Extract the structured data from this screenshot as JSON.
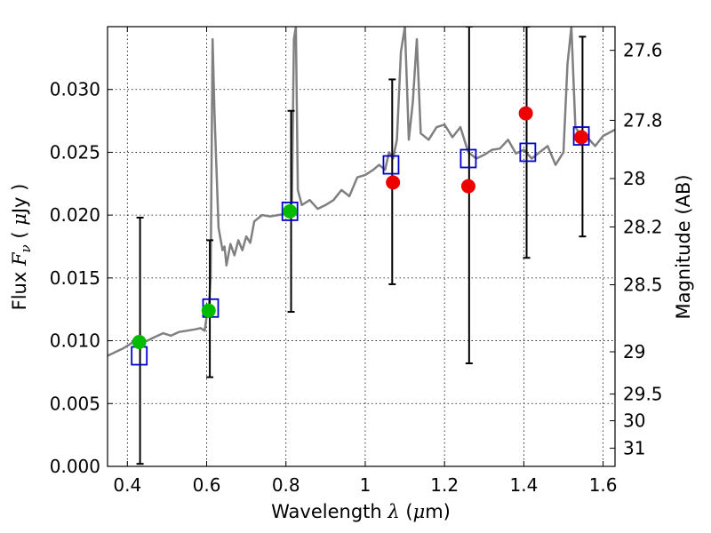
{
  "chart_data": {
    "type": "scatter",
    "title": "",
    "xlabel": "Wavelength  λ (μm)",
    "xlabel_parts": {
      "pre": "Wavelength  ",
      "sym": "λ",
      "open": " (",
      "mu": "μ",
      "post": "m)"
    },
    "ylabel": "Flux  Fν  ( μJy )",
    "ylabel_parts": {
      "pre": "Flux  ",
      "sym": "F",
      "sub": "ν",
      "open": "  ( ",
      "mu": "μ",
      "post": "Jy )"
    },
    "ylabel_right": "Magnitude (AB)",
    "xlim": [
      0.35,
      1.63
    ],
    "ylim": [
      0.0,
      0.035
    ],
    "grid": true,
    "x_ticks": [
      {
        "value": 0.4,
        "label": "0.4"
      },
      {
        "value": 0.6,
        "label": "0.6"
      },
      {
        "value": 0.8,
        "label": "0.8"
      },
      {
        "value": 1.0,
        "label": "1"
      },
      {
        "value": 1.2,
        "label": "1.2"
      },
      {
        "value": 1.4,
        "label": "1.4"
      },
      {
        "value": 1.6,
        "label": "1.6"
      }
    ],
    "y_ticks": [
      {
        "value": 0.0,
        "label": "0.000"
      },
      {
        "value": 0.005,
        "label": "0.005"
      },
      {
        "value": 0.01,
        "label": "0.010"
      },
      {
        "value": 0.015,
        "label": "0.015"
      },
      {
        "value": 0.02,
        "label": "0.020"
      },
      {
        "value": 0.025,
        "label": "0.025"
      },
      {
        "value": 0.03,
        "label": "0.030"
      }
    ],
    "mag_ticks": [
      {
        "value": 27.6,
        "label": "27.6"
      },
      {
        "value": 27.8,
        "label": "27.8"
      },
      {
        "value": 28.0,
        "label": "28"
      },
      {
        "value": 28.2,
        "label": "28.2"
      },
      {
        "value": 28.5,
        "label": "28.5"
      },
      {
        "value": 29.0,
        "label": "29"
      },
      {
        "value": 29.5,
        "label": "29.5"
      },
      {
        "value": 30.0,
        "label": "30"
      },
      {
        "value": 31.0,
        "label": "31"
      }
    ],
    "colors": {
      "spectrum": "#808080",
      "model": "#0000cc",
      "green": "#00bb00",
      "red": "#ee0000",
      "errorbar": "#000000"
    },
    "spectrum": {
      "name": "",
      "x": [
        0.35,
        0.37,
        0.39,
        0.41,
        0.42,
        0.43,
        0.45,
        0.47,
        0.49,
        0.51,
        0.53,
        0.55,
        0.57,
        0.585,
        0.595,
        0.6,
        0.605,
        0.61,
        0.615,
        0.62,
        0.63,
        0.64,
        0.645,
        0.65,
        0.66,
        0.67,
        0.68,
        0.69,
        0.7,
        0.71,
        0.72,
        0.74,
        0.76,
        0.78,
        0.8,
        0.815,
        0.82,
        0.825,
        0.83,
        0.84,
        0.86,
        0.88,
        0.9,
        0.92,
        0.94,
        0.96,
        0.98,
        1.0,
        1.02,
        1.035,
        1.05,
        1.06,
        1.07,
        1.08,
        1.09,
        1.1,
        1.11,
        1.12,
        1.13,
        1.14,
        1.16,
        1.18,
        1.2,
        1.22,
        1.24,
        1.26,
        1.28,
        1.3,
        1.32,
        1.34,
        1.36,
        1.38,
        1.4,
        1.42,
        1.44,
        1.46,
        1.48,
        1.5,
        1.51,
        1.52,
        1.53,
        1.54,
        1.56,
        1.58,
        1.6,
        1.63
      ],
      "y": [
        0.0088,
        0.0091,
        0.0094,
        0.0098,
        0.0102,
        0.0099,
        0.01,
        0.0103,
        0.0106,
        0.0104,
        0.0107,
        0.0108,
        0.0109,
        0.011,
        0.0108,
        0.0119,
        0.0125,
        0.015,
        0.034,
        0.028,
        0.019,
        0.0172,
        0.0175,
        0.016,
        0.0177,
        0.0168,
        0.018,
        0.0172,
        0.0183,
        0.0178,
        0.0195,
        0.02,
        0.0199,
        0.02,
        0.0201,
        0.021,
        0.034,
        0.035,
        0.022,
        0.0208,
        0.0212,
        0.0205,
        0.0208,
        0.0212,
        0.022,
        0.0215,
        0.023,
        0.0232,
        0.0236,
        0.024,
        0.0236,
        0.025,
        0.0245,
        0.026,
        0.033,
        0.035,
        0.026,
        0.029,
        0.034,
        0.0265,
        0.026,
        0.027,
        0.0272,
        0.0262,
        0.027,
        0.025,
        0.0245,
        0.0248,
        0.0252,
        0.0253,
        0.026,
        0.0249,
        0.0252,
        0.0245,
        0.025,
        0.0255,
        0.024,
        0.025,
        0.032,
        0.035,
        0.027,
        0.0265,
        0.0262,
        0.0255,
        0.0263,
        0.0268
      ]
    },
    "series": [
      {
        "name": "",
        "marker": "open-square",
        "x": [
          0.43,
          0.61,
          0.81,
          1.065,
          1.26,
          1.41,
          1.545
        ],
        "y": [
          0.0088,
          0.0126,
          0.0203,
          0.024,
          0.0245,
          0.025,
          0.0263
        ]
      },
      {
        "name": "",
        "marker": "filled-circle",
        "color": "green",
        "x": [
          0.43,
          0.605,
          0.81
        ],
        "y": [
          0.0099,
          0.0124,
          0.0203
        ]
      },
      {
        "name": "",
        "marker": "filled-circle",
        "color": "red",
        "x": [
          1.07,
          1.26,
          1.405,
          1.545
        ],
        "y": [
          0.0226,
          0.0223,
          0.0281,
          0.0262
        ]
      }
    ],
    "errorbars": [
      {
        "x": 0.432,
        "low": 0.0002,
        "high": 0.0198
      },
      {
        "x": 0.608,
        "low": 0.0071,
        "high": 0.018
      },
      {
        "x": 0.813,
        "low": 0.0123,
        "high": 0.0283
      },
      {
        "x": 1.068,
        "low": 0.0145,
        "high": 0.0308
      },
      {
        "x": 1.262,
        "low": 0.0082,
        "high": 0.035
      },
      {
        "x": 1.407,
        "low": 0.0166,
        "high": 0.035
      },
      {
        "x": 1.548,
        "low": 0.0183,
        "high": 0.0342
      }
    ]
  }
}
